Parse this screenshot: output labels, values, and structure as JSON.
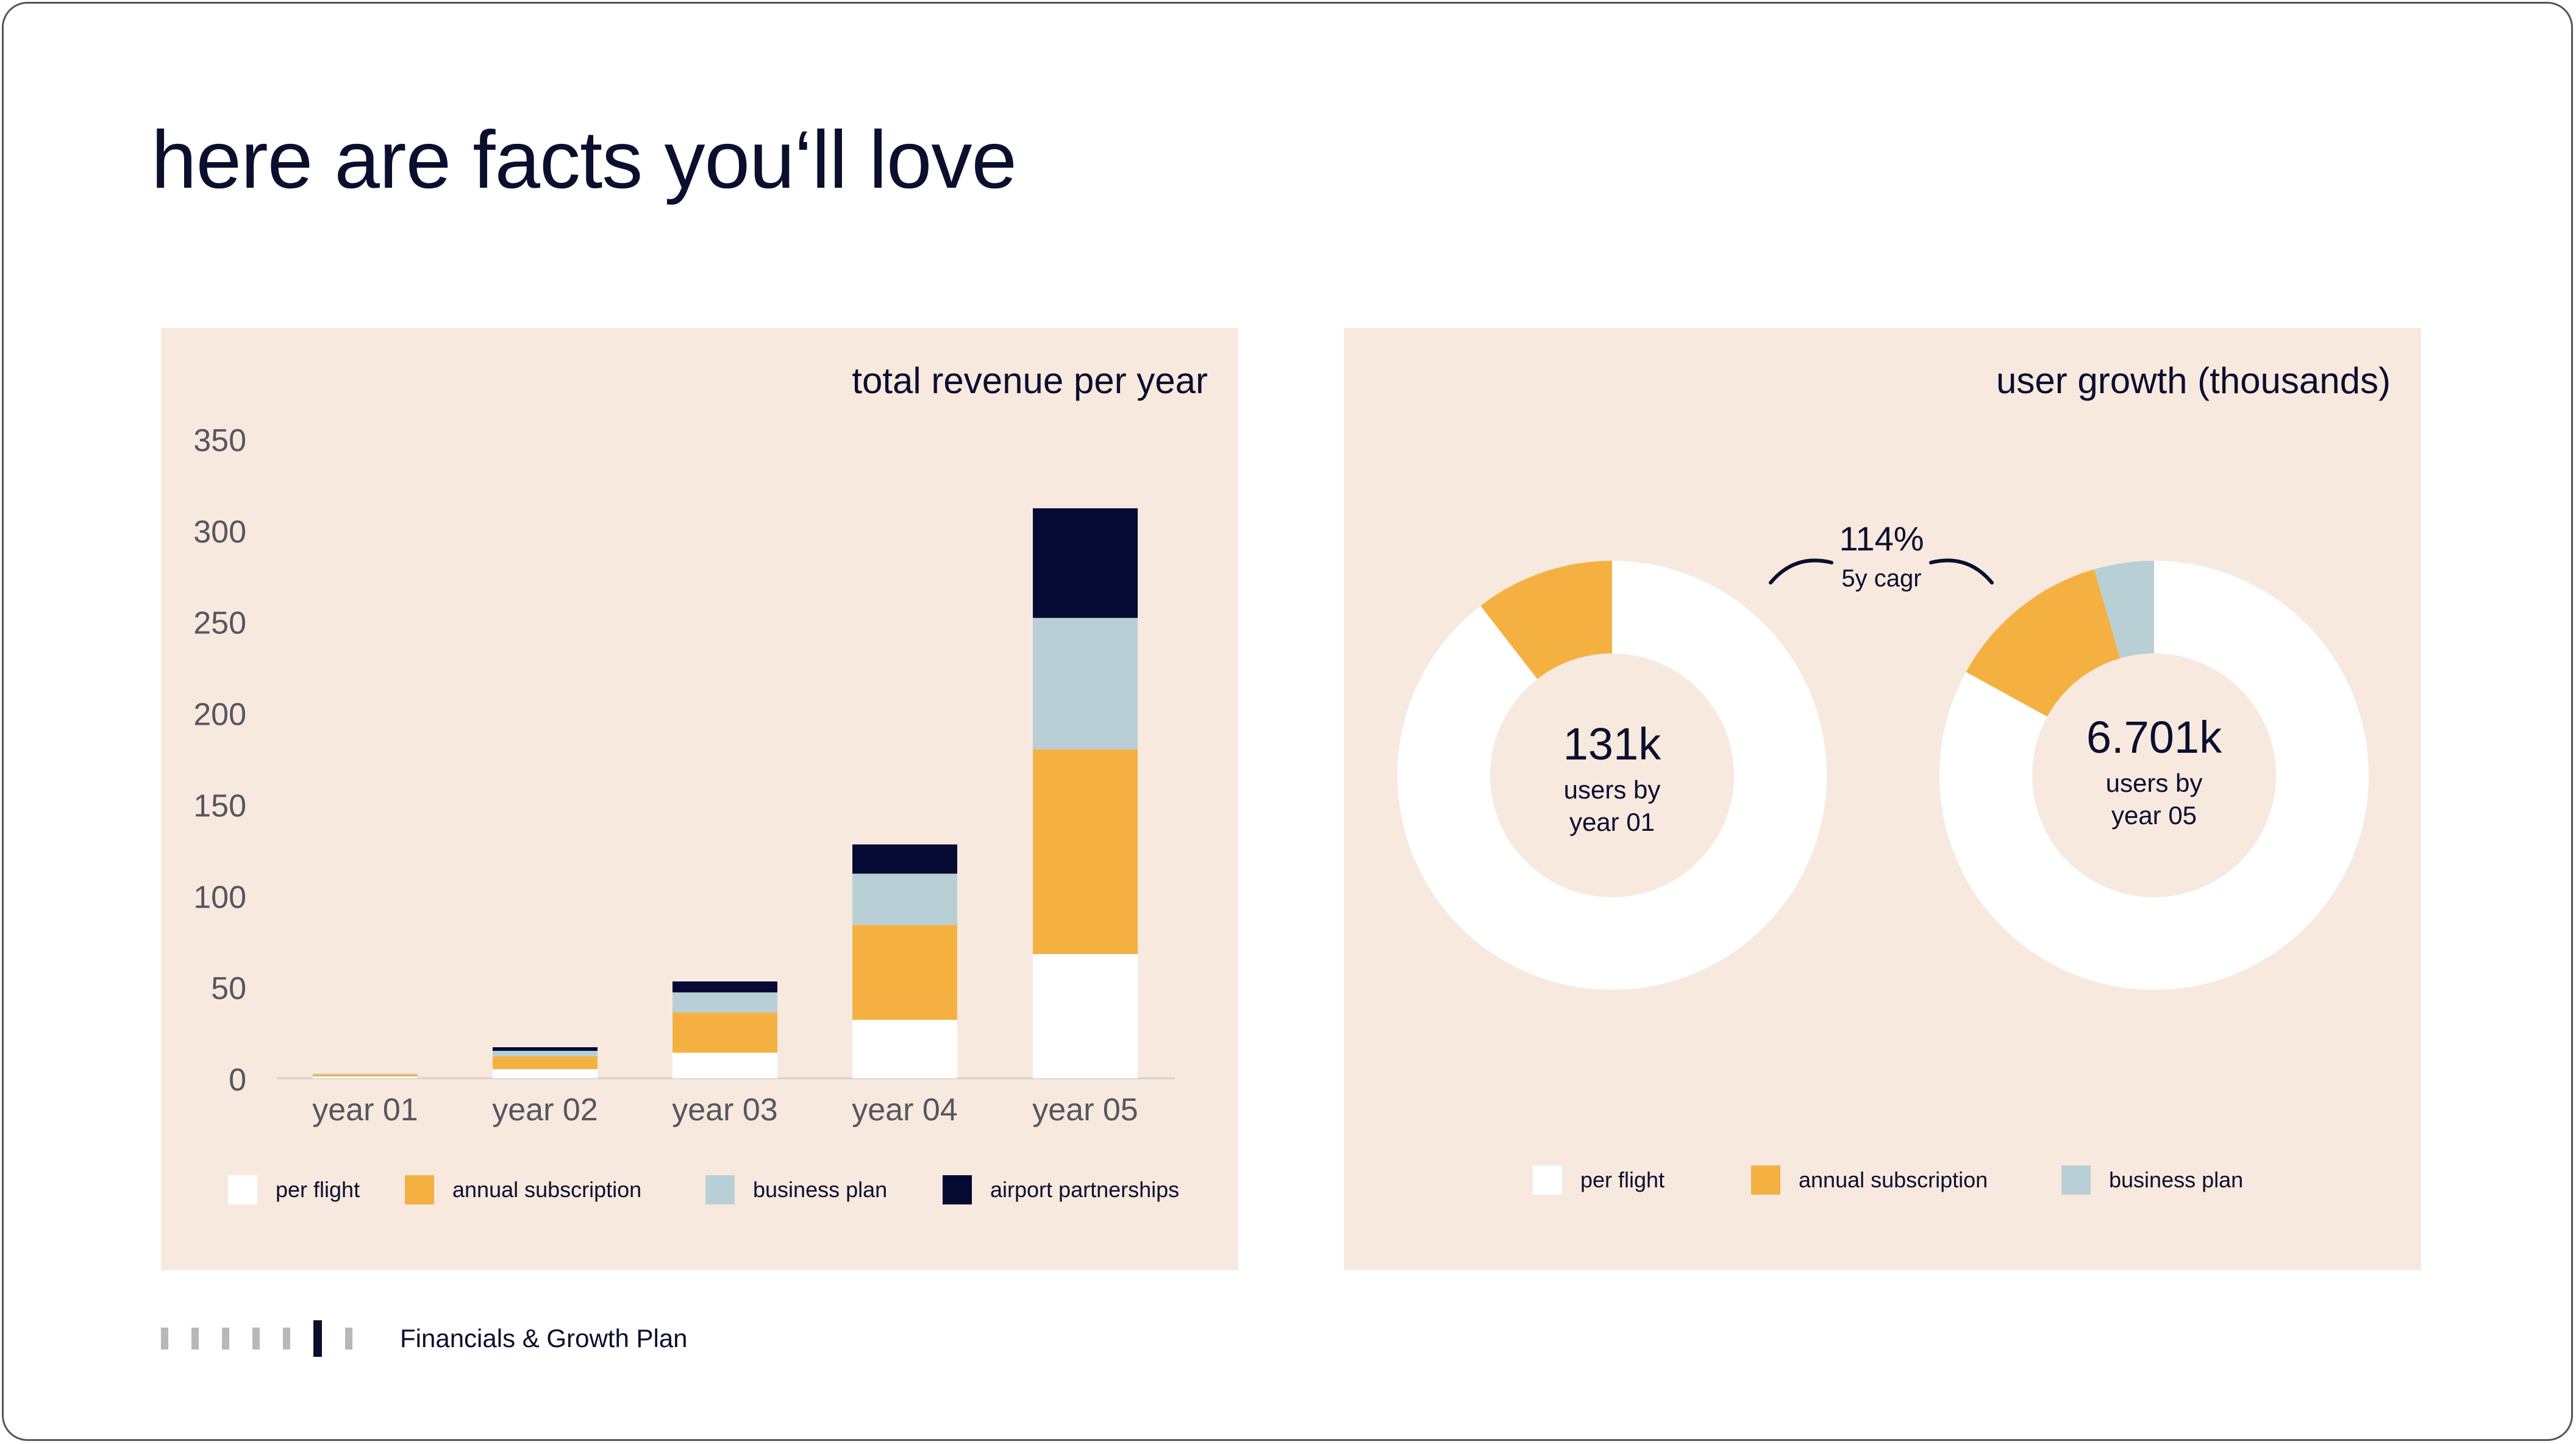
{
  "slide": {
    "title": "here are facts you‘ll love",
    "footer_section": "Financials & Growth Plan",
    "progress": {
      "total": 7,
      "current": 6
    }
  },
  "colors": {
    "panel": "#f8e9df",
    "per_flight": "#ffffff",
    "annual_subscription": "#f4b142",
    "business_plan": "#b8d0d5",
    "airport_partnerships": "#050a33",
    "text": "#0a0f2e"
  },
  "left_panel": {
    "title": "total revenue per year",
    "legend": [
      {
        "label": "per flight",
        "color": "#ffffff"
      },
      {
        "label": "annual subscription",
        "color": "#f4b142"
      },
      {
        "label": "business plan",
        "color": "#b8d0d5"
      },
      {
        "label": "airport partnerships",
        "color": "#050a33"
      }
    ]
  },
  "right_panel": {
    "title": "user growth (thousands)",
    "cagr_value": "114%",
    "cagr_label": "5y cagr",
    "donut1": {
      "value": "131k",
      "label_line1": "users by",
      "label_line2": "year 01"
    },
    "donut2": {
      "value": "6.701k",
      "label_line1": "users by",
      "label_line2": "year 05"
    },
    "legend": [
      {
        "label": "per flight",
        "color": "#ffffff"
      },
      {
        "label": "annual subscription",
        "color": "#f4b142"
      },
      {
        "label": "business plan",
        "color": "#b8d0d5"
      }
    ]
  },
  "chart_data": [
    {
      "type": "bar",
      "stacked": true,
      "title": "total revenue per year",
      "categories": [
        "year 01",
        "year 02",
        "year 03",
        "year 04",
        "year 05"
      ],
      "ylim": [
        0,
        350
      ],
      "yticks": [
        0,
        50,
        100,
        150,
        200,
        250,
        300,
        350
      ],
      "series": [
        {
          "name": "per flight",
          "color": "#ffffff",
          "values": [
            1,
            5,
            14,
            32,
            68
          ]
        },
        {
          "name": "annual subscription",
          "color": "#f4b142",
          "values": [
            1,
            7,
            22,
            52,
            112
          ]
        },
        {
          "name": "business plan",
          "color": "#b8d0d5",
          "values": [
            0.5,
            3,
            11,
            28,
            72
          ]
        },
        {
          "name": "airport partnerships",
          "color": "#050a33",
          "values": [
            0,
            2,
            6,
            16,
            60
          ]
        }
      ]
    },
    {
      "type": "pie",
      "donut": true,
      "title": "users by year 01",
      "center_value": "131k",
      "slices": [
        {
          "name": "per flight",
          "color": "#ffffff",
          "value": 89.5
        },
        {
          "name": "annual subscription",
          "color": "#f4b142",
          "value": 10.5
        }
      ]
    },
    {
      "type": "pie",
      "donut": true,
      "title": "users by year 05",
      "center_value": "6.701k",
      "slices": [
        {
          "name": "per flight",
          "color": "#ffffff",
          "value": 83
        },
        {
          "name": "annual subscription",
          "color": "#f4b142",
          "value": 12.5
        },
        {
          "name": "business plan",
          "color": "#b8d0d5",
          "value": 4.5
        }
      ]
    }
  ]
}
